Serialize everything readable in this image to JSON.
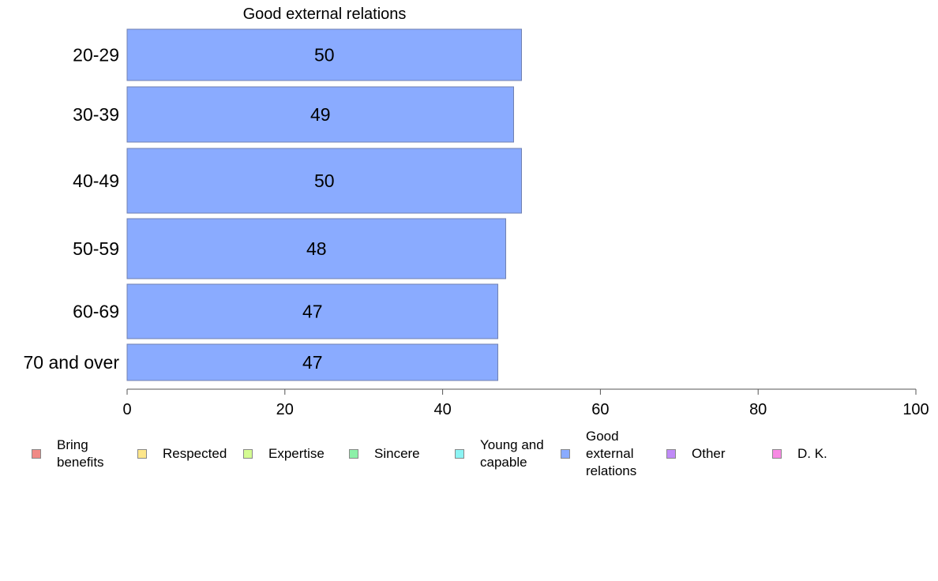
{
  "chart_data": {
    "type": "bar",
    "orientation": "horizontal",
    "title": "Good external relations",
    "categories": [
      "20-29",
      "30-39",
      "40-49",
      "50-59",
      "60-69",
      "70 and over"
    ],
    "series": [
      {
        "name": "Good external relations",
        "values": [
          50,
          49,
          50,
          48,
          47,
          47
        ]
      }
    ],
    "data_labels": [
      "50",
      "49",
      "50",
      "48",
      "47",
      "47"
    ],
    "xlim": [
      0,
      100
    ],
    "x_ticks": [
      "0",
      "20",
      "40",
      "60",
      "80",
      "100"
    ],
    "grid": false,
    "bar_color": "#8aabff",
    "bar_border_color": "#7080b0",
    "legend_position": "bottom"
  },
  "legend": [
    {
      "label": "Bring benefits",
      "color": "#f08a86"
    },
    {
      "label": "Respected",
      "color": "#fde68a"
    },
    {
      "label": "Expertise",
      "color": "#d4fb92"
    },
    {
      "label": "Sincere",
      "color": "#8cf0a8"
    },
    {
      "label": "Young and capable",
      "color": "#8cf4f4"
    },
    {
      "label": "Good external relations",
      "color": "#8aabff"
    },
    {
      "label": "Other",
      "color": "#c08af8"
    },
    {
      "label": "D. K.",
      "color": "#f88ae4"
    }
  ]
}
